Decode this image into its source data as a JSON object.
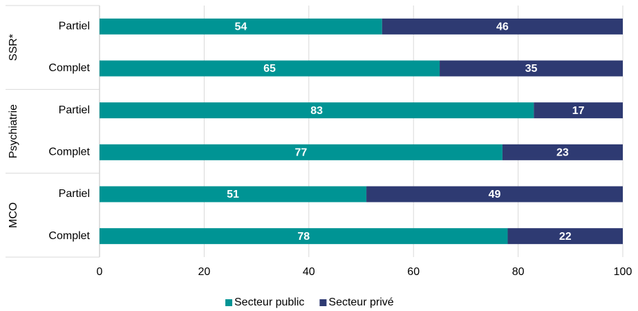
{
  "chart_data": {
    "type": "stacked-bar-horizontal",
    "groups": [
      {
        "name": "SSR*",
        "categories": [
          "Partiel",
          "Complet"
        ]
      },
      {
        "name": "Psychiatrie",
        "categories": [
          "Partiel",
          "Complet"
        ]
      },
      {
        "name": "MCO",
        "categories": [
          "Partiel",
          "Complet"
        ]
      }
    ],
    "series": [
      {
        "name": "Secteur public",
        "color": "#009494",
        "values": [
          54,
          65,
          83,
          77,
          51,
          78
        ]
      },
      {
        "name": "Secteur privé",
        "color": "#2e3a72",
        "values": [
          46,
          35,
          17,
          23,
          49,
          22
        ]
      }
    ],
    "xlim": [
      0,
      100
    ],
    "xticks": [
      0,
      20,
      40,
      60,
      80,
      100
    ],
    "grid": true,
    "legend": "bottom"
  }
}
